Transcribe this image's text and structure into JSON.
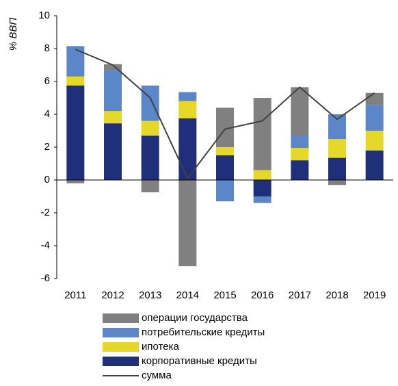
{
  "chart_data": {
    "type": "bar",
    "stacked": true,
    "y_label": "% ВВП",
    "categories": [
      "2011",
      "2012",
      "2013",
      "2014",
      "2015",
      "2016",
      "2017",
      "2018",
      "2019"
    ],
    "series": [
      {
        "name": "операции государства",
        "type": "bar",
        "color": "#808080",
        "values": [
          -0.2,
          0.35,
          -0.75,
          -5.25,
          2.4,
          4.4,
          2.9,
          -0.3,
          0.75
        ]
      },
      {
        "name": "потребительские кредиты",
        "type": "bar",
        "color": "#5b86c8",
        "values": [
          1.85,
          2.5,
          2.15,
          0.55,
          -1.3,
          -0.4,
          0.8,
          1.5,
          1.55
        ]
      },
      {
        "name": "ипотека",
        "type": "bar",
        "color": "#e6d828",
        "values": [
          0.55,
          0.75,
          0.9,
          1.05,
          0.5,
          0.6,
          0.75,
          1.15,
          1.2
        ]
      },
      {
        "name": "корпоративные кредиты",
        "type": "bar",
        "color": "#1f2f7a",
        "values": [
          5.75,
          3.45,
          2.7,
          3.75,
          1.5,
          -1.0,
          1.2,
          1.35,
          1.8
        ]
      },
      {
        "name": "сумма",
        "type": "line",
        "color": "#404040",
        "values": [
          7.95,
          7.0,
          5.0,
          0.1,
          3.1,
          3.6,
          5.65,
          3.7,
          5.3
        ]
      }
    ],
    "ylim": [
      -6,
      10
    ],
    "yticks": [
      -6,
      -4,
      -2,
      0,
      2,
      4,
      6,
      8,
      10
    ]
  }
}
